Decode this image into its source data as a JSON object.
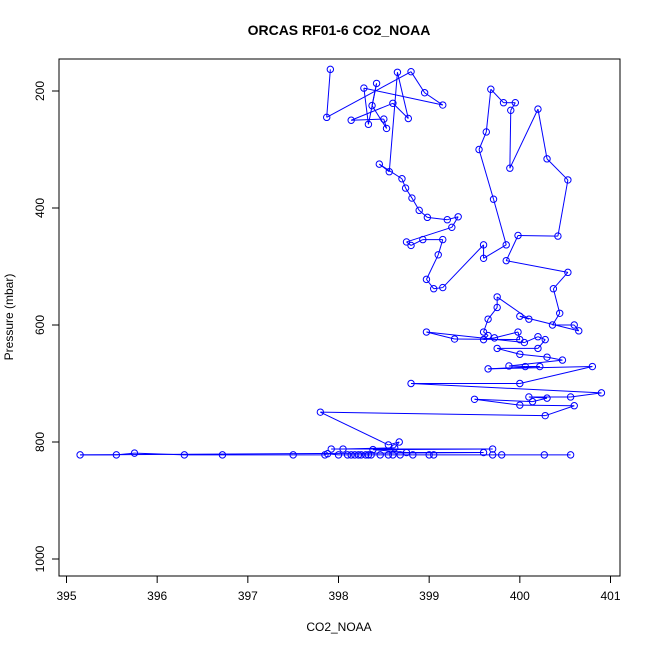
{
  "chart_data": {
    "type": "line",
    "title": "ORCAS RF01-6 CO2_NOAA",
    "xlabel": "CO2_NOAA",
    "ylabel": "Pressure (mbar)",
    "xlim": [
      395,
      401
    ],
    "ylim": [
      1000,
      200
    ],
    "y_reversed": true,
    "x_ticks": [
      395,
      396,
      397,
      398,
      399,
      400,
      401
    ],
    "y_ticks": [
      200,
      400,
      600,
      800,
      1000
    ],
    "series_color": "#0000ff",
    "marker": "open-circle",
    "series": [
      {
        "values": [
          [
            397.91,
            163
          ],
          [
            397.87,
            245
          ],
          [
            398.8,
            167
          ],
          [
            398.95,
            203
          ],
          [
            399.15,
            224
          ],
          [
            398.28,
            195
          ],
          [
            398.33,
            257
          ],
          [
            398.42,
            187
          ],
          [
            398.37,
            225
          ],
          [
            398.53,
            264
          ],
          [
            398.5,
            248
          ],
          [
            398.14,
            250
          ],
          [
            398.6,
            221
          ],
          [
            398.77,
            247
          ],
          [
            398.65,
            168
          ],
          [
            398.56,
            338
          ],
          [
            398.45,
            325
          ],
          [
            398.7,
            350
          ],
          [
            398.74,
            366
          ],
          [
            398.81,
            383
          ],
          [
            398.89,
            404
          ],
          [
            398.98,
            416
          ],
          [
            399.2,
            420
          ],
          [
            399.32,
            415
          ],
          [
            399.25,
            433
          ],
          [
            398.75,
            458
          ],
          [
            398.8,
            464
          ],
          [
            398.93,
            454
          ],
          [
            399.15,
            454
          ],
          [
            399.1,
            480
          ],
          [
            398.97,
            522
          ],
          [
            399.05,
            538
          ],
          [
            399.15,
            536
          ],
          [
            399.6,
            463
          ],
          [
            399.6,
            486
          ],
          [
            399.85,
            463
          ],
          [
            399.71,
            385
          ],
          [
            399.55,
            300
          ],
          [
            399.63,
            270
          ],
          [
            399.68,
            197
          ],
          [
            399.82,
            220
          ],
          [
            399.95,
            220
          ],
          [
            399.9,
            233
          ],
          [
            399.89,
            332
          ],
          [
            400.2,
            231
          ],
          [
            400.3,
            316
          ],
          [
            400.53,
            352
          ],
          [
            400.42,
            448
          ],
          [
            399.98,
            447
          ],
          [
            399.85,
            490
          ],
          [
            400.53,
            510
          ],
          [
            400.37,
            538
          ],
          [
            400.44,
            580
          ],
          [
            400.36,
            600
          ],
          [
            400.6,
            600
          ],
          [
            400.65,
            610
          ],
          [
            400.0,
            585
          ],
          [
            400.1,
            590
          ],
          [
            399.75,
            552
          ],
          [
            399.75,
            570
          ],
          [
            399.65,
            590
          ],
          [
            399.6,
            612
          ],
          [
            399.65,
            618
          ],
          [
            399.6,
            625
          ],
          [
            399.72,
            622
          ],
          [
            399.98,
            612
          ],
          [
            400.0,
            625
          ],
          [
            399.28,
            624
          ],
          [
            398.97,
            612
          ],
          [
            400.05,
            630
          ],
          [
            400.2,
            620
          ],
          [
            400.28,
            625
          ],
          [
            400.2,
            640
          ],
          [
            399.75,
            640
          ],
          [
            400.0,
            650
          ],
          [
            400.3,
            655
          ],
          [
            400.47,
            660
          ],
          [
            399.88,
            670
          ],
          [
            400.06,
            671
          ],
          [
            400.22,
            671
          ],
          [
            399.65,
            675
          ],
          [
            400.8,
            671
          ],
          [
            400.0,
            700
          ],
          [
            398.8,
            700
          ],
          [
            400.9,
            716
          ],
          [
            400.56,
            723
          ],
          [
            400.1,
            723
          ],
          [
            400.3,
            725
          ],
          [
            400.14,
            731
          ],
          [
            399.5,
            727
          ],
          [
            400.0,
            737
          ],
          [
            400.6,
            738
          ],
          [
            400.28,
            755
          ],
          [
            397.8,
            749
          ],
          [
            398.55,
            805
          ],
          [
            398.67,
            800
          ],
          [
            398.62,
            810
          ],
          [
            398.05,
            812
          ],
          [
            397.92,
            812
          ],
          [
            399.7,
            812
          ],
          [
            398.38,
            813
          ],
          [
            398.75,
            818
          ],
          [
            399.6,
            818
          ],
          [
            395.15,
            822
          ],
          [
            395.55,
            822
          ],
          [
            395.75,
            819
          ],
          [
            396.3,
            822
          ],
          [
            396.72,
            822
          ],
          [
            397.5,
            822
          ],
          [
            397.85,
            822
          ],
          [
            397.88,
            820
          ],
          [
            398.0,
            822
          ],
          [
            398.1,
            822
          ],
          [
            398.14,
            822
          ],
          [
            398.18,
            822
          ],
          [
            398.22,
            822
          ],
          [
            398.25,
            822
          ],
          [
            398.3,
            822
          ],
          [
            398.33,
            822
          ],
          [
            398.36,
            822
          ],
          [
            398.46,
            822
          ],
          [
            398.55,
            822
          ],
          [
            398.6,
            822
          ],
          [
            398.68,
            822
          ],
          [
            398.82,
            822
          ],
          [
            399.0,
            822
          ],
          [
            399.05,
            822
          ],
          [
            399.7,
            822
          ],
          [
            399.8,
            822
          ],
          [
            400.27,
            822
          ],
          [
            400.56,
            822
          ]
        ]
      }
    ]
  }
}
